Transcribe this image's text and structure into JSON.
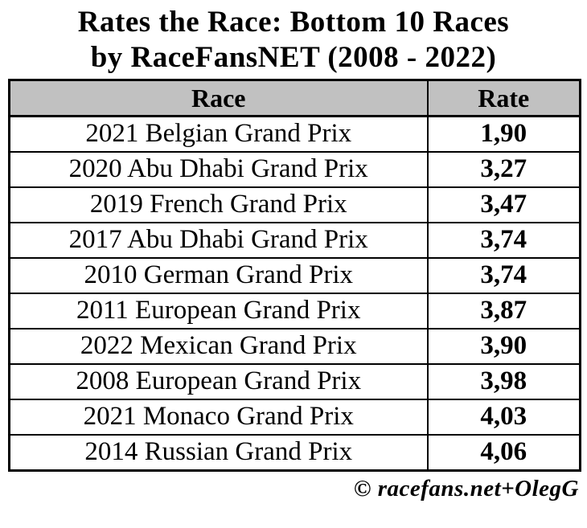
{
  "title": {
    "line1": "Rates the Race: Bottom 10 Races",
    "line2": "by RaceFansNET (2008 - 2022)"
  },
  "table": {
    "columns": {
      "race": "Race",
      "rate": "Rate"
    },
    "rows": [
      {
        "race": "2021 Belgian Grand Prix",
        "rate": "1,90"
      },
      {
        "race": "2020 Abu Dhabi Grand Prix",
        "rate": "3,27"
      },
      {
        "race": "2019 French Grand Prix",
        "rate": "3,47"
      },
      {
        "race": "2017 Abu Dhabi Grand Prix",
        "rate": "3,74"
      },
      {
        "race": "2010 German Grand Prix",
        "rate": "3,74"
      },
      {
        "race": "2011 European Grand Prix",
        "rate": "3,87"
      },
      {
        "race": "2022 Mexican Grand Prix",
        "rate": "3,90"
      },
      {
        "race": "2008 European Grand Prix",
        "rate": "3,98"
      },
      {
        "race": "2021 Monaco Grand Prix",
        "rate": "4,03"
      },
      {
        "race": "2014 Russian Grand Prix",
        "rate": "4,06"
      }
    ]
  },
  "footer": {
    "credit": "© racefans.net+OlegG"
  },
  "colors": {
    "header_bg": "#c1c1c1",
    "border": "#000000",
    "background": "#ffffff",
    "text": "#000000"
  },
  "chart_data": {
    "type": "table",
    "title": "Rates the Race: Bottom 10 Races by RaceFansNET (2008 - 2022)",
    "columns": [
      "Race",
      "Rate"
    ],
    "categories": [
      "2021 Belgian Grand Prix",
      "2020 Abu Dhabi Grand Prix",
      "2019 French Grand Prix",
      "2017 Abu Dhabi Grand Prix",
      "2010 German Grand Prix",
      "2011 European Grand Prix",
      "2022 Mexican Grand Prix",
      "2008 European Grand Prix",
      "2021 Monaco Grand Prix",
      "2014 Russian Grand Prix"
    ],
    "values": [
      1.9,
      3.27,
      3.47,
      3.74,
      3.74,
      3.87,
      3.9,
      3.98,
      4.03,
      4.06
    ],
    "value_format": "comma-decimal",
    "source": "© racefans.net+OlegG"
  }
}
